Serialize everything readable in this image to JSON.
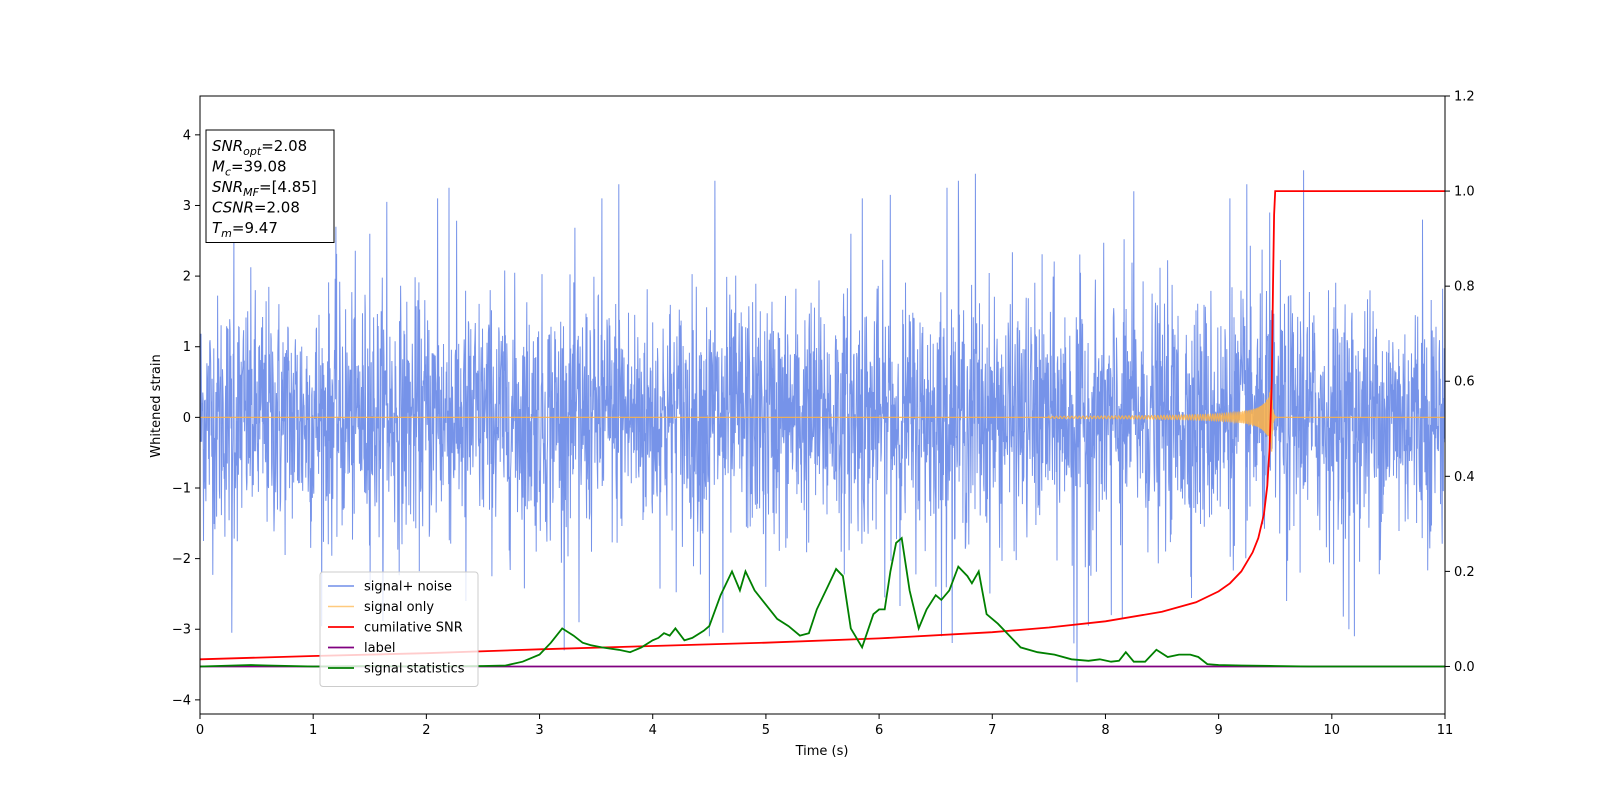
{
  "chart_data": {
    "type": "line",
    "title": "",
    "xlabel": "Time (s)",
    "ylabel": "Whitened strain",
    "xlim": [
      0,
      11
    ],
    "ylim": [
      -4.2,
      4.55
    ],
    "y2lim": [
      -0.1,
      1.2
    ],
    "xticks": [
      0,
      1,
      2,
      3,
      4,
      5,
      6,
      7,
      8,
      9,
      10,
      11
    ],
    "yticks": [
      -4,
      -3,
      -2,
      -1,
      0,
      1,
      2,
      3,
      4
    ],
    "y2ticks": [
      0.0,
      0.2,
      0.4,
      0.6,
      0.8,
      1.0,
      1.2
    ],
    "grid": false,
    "legend_position": "lower-left",
    "info_box": [
      {
        "base": "SNR",
        "sub": "opt",
        "value": "=2.08"
      },
      {
        "base": "M",
        "sub": "c",
        "value": "=39.08"
      },
      {
        "base": "SNR",
        "sub": "MF",
        "value": "=[4.85]"
      },
      {
        "base": "CSNR",
        "sub": "",
        "value": "=2.08"
      },
      {
        "base": "T",
        "sub": "m",
        "value": "=9.47"
      }
    ],
    "series": [
      {
        "name": "signal+ noise",
        "color": "#4169e1",
        "axis": "left",
        "kind": "noise",
        "sigma": 0.85,
        "spikes": [
          [
            1.2,
            2.7
          ],
          [
            1.5,
            2.6
          ],
          [
            1.65,
            3.05
          ],
          [
            2.1,
            3.1
          ],
          [
            2.2,
            3.25
          ],
          [
            2.35,
            -2.6
          ],
          [
            3.35,
            -2.9
          ],
          [
            3.7,
            3.3
          ],
          [
            3.55,
            3.1
          ],
          [
            4.5,
            -3.1
          ],
          [
            4.62,
            -3.05
          ],
          [
            4.55,
            3.35
          ],
          [
            4.7,
            -0.45
          ],
          [
            5.0,
            -2.4
          ],
          [
            5.75,
            2.6
          ],
          [
            5.85,
            3.1
          ],
          [
            6.1,
            3.15
          ],
          [
            6.6,
            3.25
          ],
          [
            6.7,
            3.35
          ],
          [
            6.55,
            -3.1
          ],
          [
            6.85,
            3.45
          ],
          [
            7.75,
            -3.75
          ],
          [
            7.72,
            -3.2
          ],
          [
            7.85,
            -2.95
          ],
          [
            8.05,
            -2.8
          ],
          [
            8.15,
            -2.85
          ],
          [
            8.25,
            3.2
          ],
          [
            9.1,
            3.1
          ],
          [
            9.25,
            3.3
          ],
          [
            9.45,
            2.9
          ],
          [
            9.6,
            -2.6
          ],
          [
            9.75,
            3.5
          ],
          [
            10.15,
            -3.0
          ],
          [
            10.2,
            -3.1
          ],
          [
            10.8,
            2.8
          ],
          [
            11.0,
            2.95
          ],
          [
            0.28,
            -3.05
          ],
          [
            0.3,
            2.65
          ]
        ]
      },
      {
        "name": "signal only",
        "color": "#ffb347",
        "axis": "left",
        "kind": "chirp",
        "t_merger": 9.47,
        "peak_amplitude": 0.5
      },
      {
        "name": "cumilative SNR",
        "color": "#ff0000",
        "axis": "right",
        "kind": "line",
        "x": [
          0,
          1,
          2,
          3,
          4,
          5,
          6,
          7,
          7.5,
          8,
          8.5,
          8.8,
          9.0,
          9.1,
          9.2,
          9.3,
          9.35,
          9.4,
          9.43,
          9.45,
          9.47,
          9.48,
          9.49,
          9.5,
          11
        ],
        "y": [
          0.015,
          0.022,
          0.028,
          0.036,
          0.043,
          0.05,
          0.059,
          0.072,
          0.082,
          0.095,
          0.115,
          0.135,
          0.158,
          0.175,
          0.2,
          0.24,
          0.27,
          0.32,
          0.38,
          0.46,
          0.6,
          0.8,
          0.95,
          1.0,
          1.0
        ]
      },
      {
        "name": "label",
        "color": "#800080",
        "axis": "right",
        "kind": "line",
        "x": [
          0,
          11
        ],
        "y": [
          0.0,
          0.0
        ]
      },
      {
        "name": "signal statistics",
        "color": "#008000",
        "axis": "right",
        "kind": "line",
        "x": [
          0,
          0.3,
          0.45,
          0.6,
          1.0,
          1.5,
          2.0,
          2.5,
          2.7,
          2.85,
          3.0,
          3.1,
          3.2,
          3.3,
          3.38,
          3.45,
          3.55,
          3.7,
          3.8,
          3.9,
          4.0,
          4.05,
          4.1,
          4.15,
          4.2,
          4.28,
          4.35,
          4.45,
          4.5,
          4.6,
          4.7,
          4.77,
          4.82,
          4.9,
          5.0,
          5.1,
          5.2,
          5.3,
          5.38,
          5.45,
          5.55,
          5.62,
          5.68,
          5.75,
          5.85,
          5.95,
          6.0,
          6.05,
          6.1,
          6.15,
          6.2,
          6.27,
          6.35,
          6.42,
          6.5,
          6.55,
          6.62,
          6.7,
          6.78,
          6.82,
          6.88,
          6.95,
          7.05,
          7.15,
          7.25,
          7.4,
          7.55,
          7.7,
          7.85,
          7.95,
          8.05,
          8.12,
          8.18,
          8.25,
          8.35,
          8.45,
          8.55,
          8.65,
          8.75,
          8.82,
          8.9,
          9.0,
          9.2,
          9.5,
          9.8,
          10.2,
          11.0
        ],
        "y": [
          0.0,
          0.002,
          0.003,
          0.002,
          0.0,
          0.001,
          0.0,
          0.001,
          0.002,
          0.01,
          0.025,
          0.05,
          0.08,
          0.065,
          0.05,
          0.045,
          0.04,
          0.035,
          0.03,
          0.04,
          0.055,
          0.06,
          0.07,
          0.065,
          0.08,
          0.055,
          0.06,
          0.075,
          0.085,
          0.15,
          0.2,
          0.16,
          0.2,
          0.16,
          0.13,
          0.1,
          0.085,
          0.065,
          0.07,
          0.12,
          0.17,
          0.205,
          0.19,
          0.08,
          0.04,
          0.11,
          0.12,
          0.12,
          0.2,
          0.26,
          0.27,
          0.16,
          0.08,
          0.12,
          0.15,
          0.14,
          0.16,
          0.21,
          0.19,
          0.175,
          0.2,
          0.11,
          0.09,
          0.065,
          0.04,
          0.03,
          0.025,
          0.015,
          0.012,
          0.015,
          0.01,
          0.012,
          0.03,
          0.01,
          0.01,
          0.035,
          0.02,
          0.025,
          0.025,
          0.02,
          0.005,
          0.003,
          0.002,
          0.001,
          0.0,
          0.0,
          0.0
        ]
      }
    ]
  }
}
